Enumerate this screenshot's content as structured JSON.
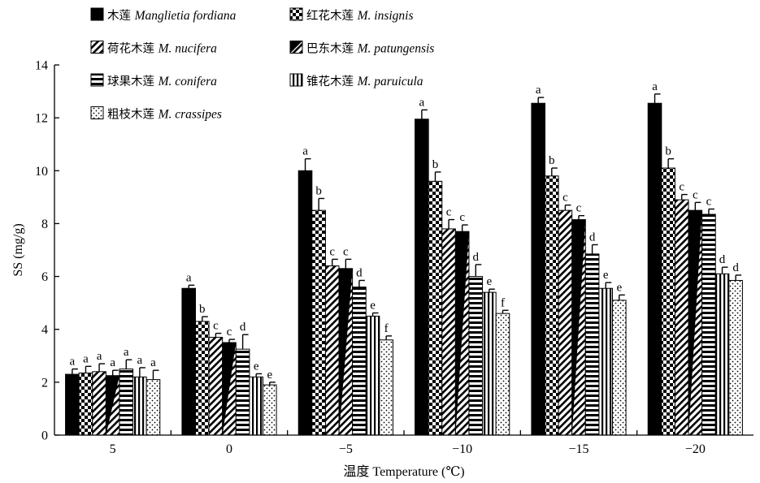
{
  "chart_data": {
    "type": "bar",
    "title": "",
    "xlabel": "温度 Temperature (℃)",
    "ylabel": "SS (mg/g)",
    "ylim": [
      0,
      14
    ],
    "yticks": [
      "0",
      "2",
      "4",
      "6",
      "8",
      "10",
      "12",
      "14"
    ],
    "grid": false,
    "legend_position": "top-left",
    "categories": [
      "5",
      "0",
      "−5",
      "−10",
      "−15",
      "−20"
    ],
    "series": [
      {
        "name": "Manglietia fordiana",
        "name_zh": "木莲",
        "pattern": "solid",
        "values": [
          2.3,
          5.55,
          10.0,
          11.95,
          12.55,
          12.55
        ],
        "errors": [
          0.2,
          0.12,
          0.45,
          0.35,
          0.22,
          0.35
        ],
        "letters": [
          "a",
          "a",
          "a",
          "a",
          "a",
          "a"
        ]
      },
      {
        "name": "M. insignis",
        "name_zh": "红花木莲",
        "pattern": "checker",
        "values": [
          2.35,
          4.3,
          8.5,
          9.6,
          9.8,
          10.1
        ],
        "errors": [
          0.25,
          0.18,
          0.45,
          0.35,
          0.3,
          0.35
        ],
        "letters": [
          "a",
          "b",
          "b",
          "b",
          "b",
          "b"
        ]
      },
      {
        "name": "M. nucifera",
        "name_zh": "荷花木莲",
        "pattern": "diagonal",
        "values": [
          2.4,
          3.7,
          6.4,
          7.8,
          8.5,
          8.9
        ],
        "errors": [
          0.3,
          0.15,
          0.25,
          0.35,
          0.2,
          0.2
        ],
        "letters": [
          "a",
          "c",
          "c",
          "c",
          "c",
          "c"
        ]
      },
      {
        "name": "M. patungensis",
        "name_zh": "巴东木莲",
        "pattern": "half-diagonal",
        "values": [
          2.25,
          3.5,
          6.3,
          7.7,
          8.15,
          8.5
        ],
        "errors": [
          0.2,
          0.12,
          0.35,
          0.25,
          0.15,
          0.3
        ],
        "letters": [
          "a",
          "c",
          "c",
          "c",
          "c",
          "c"
        ]
      },
      {
        "name": "M. conifera",
        "name_zh": "球果木莲",
        "pattern": "horizontal-stripes",
        "values": [
          2.5,
          3.25,
          5.6,
          6.0,
          6.85,
          8.35
        ],
        "errors": [
          0.35,
          0.55,
          0.25,
          0.45,
          0.35,
          0.2
        ],
        "letters": [
          "a",
          "d",
          "d",
          "d",
          "d",
          "c"
        ]
      },
      {
        "name": "M. paruicula",
        "name_zh": "锥花木莲",
        "pattern": "vertical-stripes",
        "values": [
          2.2,
          2.2,
          4.5,
          5.4,
          5.55,
          6.1
        ],
        "errors": [
          0.35,
          0.12,
          0.12,
          0.12,
          0.22,
          0.25
        ],
        "letters": [
          "a",
          "e",
          "e",
          "e",
          "e",
          "d"
        ]
      },
      {
        "name": "M. crassipes",
        "name_zh": "粗枝木莲",
        "pattern": "dots",
        "values": [
          2.1,
          1.9,
          3.6,
          4.6,
          5.1,
          5.85
        ],
        "errors": [
          0.35,
          0.1,
          0.15,
          0.12,
          0.2,
          0.2
        ],
        "letters": [
          "a",
          "e",
          "f",
          "f",
          "e",
          "d"
        ]
      }
    ]
  }
}
